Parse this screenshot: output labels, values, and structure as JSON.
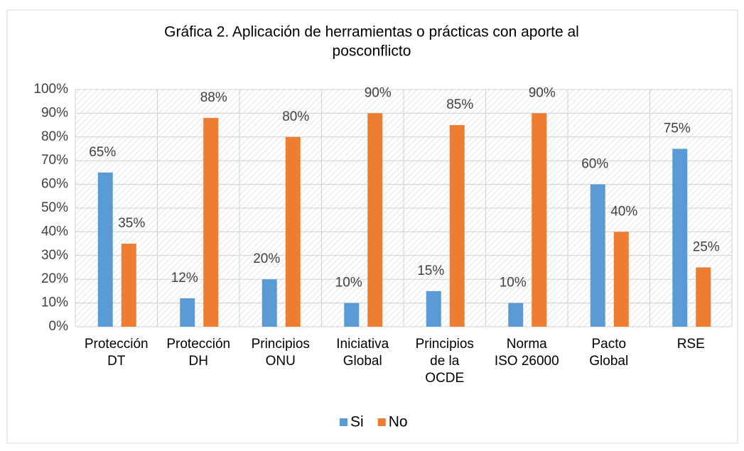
{
  "chart_data": {
    "type": "bar",
    "title": [
      "Gráfica 2. Aplicación de herramientas o prácticas con aporte al",
      "posconflicto"
    ],
    "categories": [
      [
        "Protección",
        "DT"
      ],
      [
        "Protección",
        "DH"
      ],
      [
        "Principios",
        "ONU"
      ],
      [
        "Iniciativa",
        "Global"
      ],
      [
        "Principios",
        "de la",
        "OCDE"
      ],
      [
        "Norma",
        "ISO 26000"
      ],
      [
        "Pacto",
        "Global"
      ],
      [
        "RSE"
      ]
    ],
    "series": [
      {
        "name": "Si",
        "color": "#5b9bd5",
        "values": [
          65,
          12,
          20,
          10,
          15,
          10,
          60,
          75
        ],
        "value_labels": [
          "65%",
          "12%",
          "20%",
          "10%",
          "15%",
          "10%",
          "60%",
          "75%"
        ]
      },
      {
        "name": "No",
        "color": "#ed7d31",
        "values": [
          35,
          88,
          80,
          90,
          85,
          90,
          40,
          25
        ],
        "value_labels": [
          "35%",
          "88%",
          "80%",
          "90%",
          "85%",
          "90%",
          "40%",
          "25%"
        ]
      }
    ],
    "ylim": [
      0,
      100
    ],
    "yticks": [
      {
        "value": 0,
        "label": "0%"
      },
      {
        "value": 10,
        "label": "10%"
      },
      {
        "value": 20,
        "label": "20%"
      },
      {
        "value": 30,
        "label": "30%"
      },
      {
        "value": 40,
        "label": "40%"
      },
      {
        "value": 50,
        "label": "50%"
      },
      {
        "value": 60,
        "label": "60%"
      },
      {
        "value": 70,
        "label": "70%"
      },
      {
        "value": 80,
        "label": "80%"
      },
      {
        "value": 90,
        "label": "90%"
      },
      {
        "value": 100,
        "label": "100%"
      }
    ],
    "grid": true,
    "legend": "bottom"
  }
}
